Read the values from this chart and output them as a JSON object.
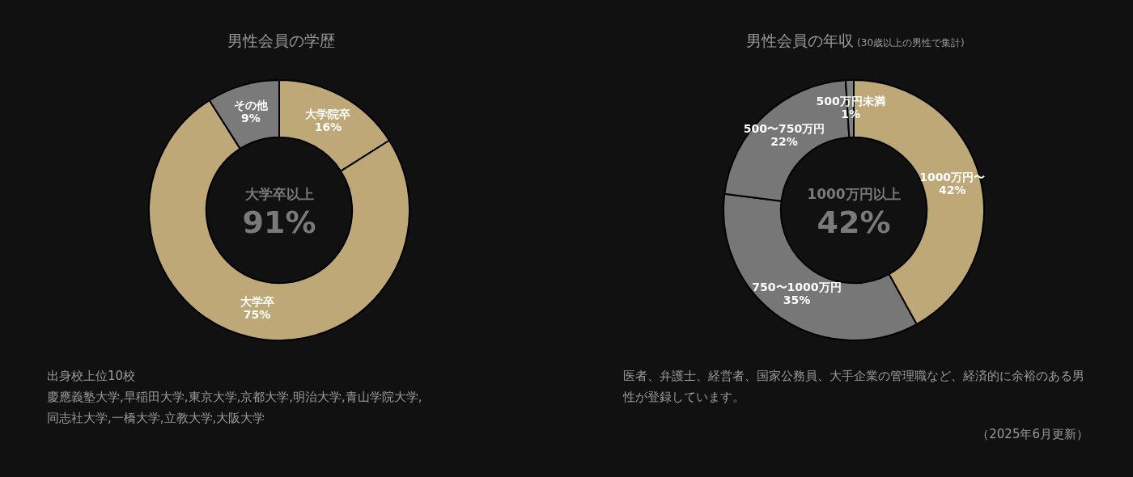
{
  "chart_data": [
    {
      "type": "donut",
      "title": "男性会員の学歴",
      "categories": [
        "大学院卒",
        "大学卒",
        "その他"
      ],
      "values": [
        16,
        75,
        9
      ],
      "value_labels": [
        "16%",
        "75%",
        "9%"
      ],
      "colors": [
        "#bfa878",
        "#bfa878",
        "#7a7a7a"
      ],
      "legend": false,
      "annotations": [
        "大学卒以上",
        "91%",
        "出身校上位10校",
        "慶應義塾大学,早稲田大学,東京大学,京都大学,明治大学,青山学院大学,",
        "同志社大学,一橋大学,立教大学,大阪大学"
      ]
    },
    {
      "type": "donut",
      "title": "男性会員の年収",
      "subtitle": "(30歳以上の男性で集計)",
      "categories": [
        "1000万円〜",
        "750〜1000万円",
        "500〜750万円",
        "500万円未満"
      ],
      "values": [
        42,
        35,
        22,
        1
      ],
      "value_labels": [
        "42%",
        "35%",
        "22%",
        "1%"
      ],
      "colors": [
        "#bfa878",
        "#777777",
        "#777777",
        "#808080"
      ],
      "legend": false,
      "annotations": [
        "1000万円以上",
        "42%",
        "医者、弁護士、経営者、国家公務員、大手企業の管理職など、経済的に余裕のある男性が登録しています。",
        "（2025年6月更新）"
      ]
    }
  ]
}
